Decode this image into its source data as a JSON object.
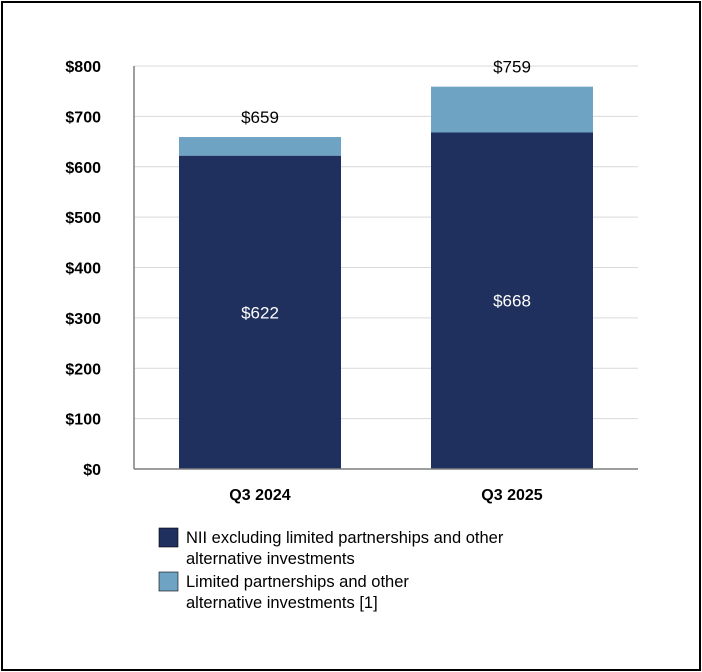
{
  "chart_data": {
    "type": "bar",
    "stacked": true,
    "categories": [
      "Q3 2024",
      "Q3 2025"
    ],
    "series": [
      {
        "name": "NII excluding limited partnerships and other alternative investments",
        "name_lines": [
          "NII excluding limited partnerships and other",
          "alternative investments"
        ],
        "values": [
          622,
          668
        ],
        "labels": [
          "$622",
          "$668"
        ],
        "color": "#1f2f5e"
      },
      {
        "name": "Limited partnerships and other alternative investments [1]",
        "name_lines": [
          "Limited partnerships and other",
          "alternative investments [1]"
        ],
        "values": [
          37,
          91
        ],
        "color": "#6fa3c4"
      }
    ],
    "totals": [
      659,
      759
    ],
    "total_labels": [
      "$659",
      "$759"
    ],
    "yticks": [
      "$0",
      "$100",
      "$200",
      "$300",
      "$400",
      "$500",
      "$600",
      "$700",
      "$800"
    ],
    "ylim": [
      0,
      800
    ],
    "grid": true,
    "legend_position": "bottom"
  }
}
